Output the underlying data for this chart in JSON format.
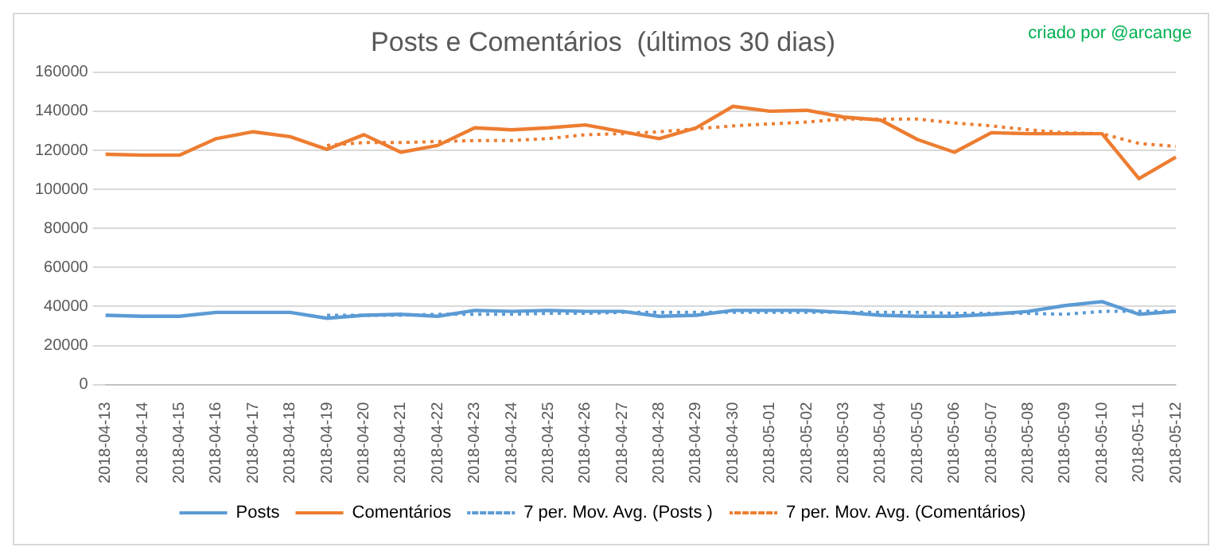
{
  "chart_data": {
    "type": "line",
    "title": "Posts e Comentários  (últimos 30 dias)",
    "annotations": [
      "criado por @arcange"
    ],
    "categories": [
      "2018-04-13",
      "2018-04-14",
      "2018-04-15",
      "2018-04-16",
      "2018-04-17",
      "2018-04-18",
      "2018-04-19",
      "2018-04-20",
      "2018-04-21",
      "2018-04-22",
      "2018-04-23",
      "2018-04-24",
      "2018-04-25",
      "2018-04-26",
      "2018-04-27",
      "2018-04-28",
      "2018-04-29",
      "2018-04-30",
      "2018-05-01",
      "2018-05-02",
      "2018-05-03",
      "2018-05-04",
      "2018-05-05",
      "2018-05-06",
      "2018-05-07",
      "2018-05-08",
      "2018-05-09",
      "2018-05-10",
      "2018-05-11",
      "2018-05-12"
    ],
    "series": [
      {
        "name": "Posts",
        "color": "#5b9bd5",
        "line_style": "solid",
        "values": [
          35500,
          35000,
          35000,
          37000,
          37000,
          37000,
          34000,
          35500,
          36000,
          35000,
          38000,
          37500,
          38000,
          37500,
          37500,
          35000,
          35500,
          38000,
          38000,
          38000,
          37000,
          35500,
          35000,
          35000,
          36000,
          37500,
          40500,
          42500,
          36000,
          37500
        ]
      },
      {
        "name": "Comentários",
        "color": "#ed7d31",
        "line_style": "solid",
        "values": [
          118000,
          117500,
          117500,
          126000,
          129500,
          127000,
          120500,
          128000,
          119000,
          122500,
          131500,
          130500,
          131500,
          133000,
          129500,
          126000,
          131500,
          142500,
          140000,
          140500,
          137000,
          135500,
          125500,
          119000,
          129000,
          128500,
          128500,
          128500,
          105500,
          116500
        ]
      },
      {
        "name": "7 per. Mov. Avg. (Posts )",
        "color": "#5b9bd5",
        "line_style": "dotted",
        "values": [
          null,
          null,
          null,
          null,
          null,
          null,
          35500,
          35500,
          35500,
          36000,
          36000,
          36000,
          36500,
          36500,
          37000,
          37000,
          37000,
          37000,
          37000,
          37000,
          37000,
          37000,
          37000,
          36500,
          36500,
          36500,
          36000,
          37500,
          37500,
          37500
        ]
      },
      {
        "name": "7 per. Mov. Avg. (Comentários)",
        "color": "#ed7d31",
        "line_style": "dotted",
        "values": [
          null,
          null,
          null,
          null,
          null,
          null,
          122500,
          124000,
          124000,
          124500,
          125000,
          125000,
          126000,
          128000,
          128500,
          129500,
          131000,
          132500,
          133500,
          134500,
          136000,
          136000,
          136000,
          134000,
          132500,
          130500,
          129000,
          128500,
          123500,
          122000
        ]
      }
    ],
    "ylim": [
      0,
      160000
    ],
    "yticks": [
      0,
      20000,
      40000,
      60000,
      80000,
      100000,
      120000,
      140000,
      160000
    ],
    "grid": "y",
    "legend": "bottom",
    "marker": "none"
  }
}
